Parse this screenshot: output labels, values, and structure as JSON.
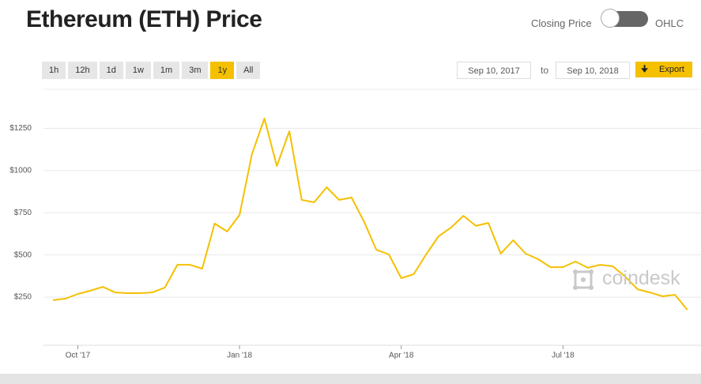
{
  "header": {
    "title": "Ethereum (ETH) Price",
    "toggle_left": "Closing Price",
    "toggle_right": "OHLC"
  },
  "controls": {
    "ranges": [
      "1h",
      "12h",
      "1d",
      "1w",
      "1m",
      "3m",
      "1y",
      "All"
    ],
    "active_range": "1y",
    "start_date": "Sep 10, 2017",
    "to": "to",
    "end_date": "Sep 10, 2018",
    "export": "Export"
  },
  "watermark": "coindesk",
  "chart_data": {
    "type": "line",
    "categories": [
      null,
      null,
      "Oct '17",
      null,
      null,
      null,
      null,
      null,
      null,
      null,
      null,
      null,
      null,
      null,
      null,
      "Jan '18",
      null,
      null,
      null,
      null,
      null,
      null,
      null,
      null,
      null,
      null,
      null,
      null,
      "Apr '18",
      null,
      null,
      null,
      null,
      null,
      null,
      null,
      null,
      null,
      null,
      null,
      null,
      "Jul '18",
      null,
      null,
      null,
      null,
      null,
      null,
      null,
      null,
      null,
      null
    ],
    "series": [
      {
        "name": "Closing Price",
        "color": "#f5c000",
        "values": [
          232,
          241,
          269,
          288,
          311,
          278,
          274,
          274,
          278,
          307,
          442,
          442,
          419,
          686,
          639,
          737,
          1097,
          1308,
          1027,
          1233,
          826,
          812,
          901,
          826,
          840,
          699,
          531,
          503,
          363,
          386,
          503,
          611,
          662,
          732,
          672,
          690,
          508,
          587,
          508,
          475,
          428,
          428,
          461,
          424,
          442,
          433,
          372,
          297,
          278,
          255,
          264,
          175
        ]
      }
    ],
    "ylim": [
      -35,
      1500
    ],
    "yticks": [
      {
        "value": 250,
        "label": "$250"
      },
      {
        "value": 500,
        "label": "$500"
      },
      {
        "value": 750,
        "label": "$750"
      },
      {
        "value": 1000,
        "label": "$1000"
      },
      {
        "value": 1250,
        "label": "$1250"
      }
    ],
    "grid": true
  }
}
